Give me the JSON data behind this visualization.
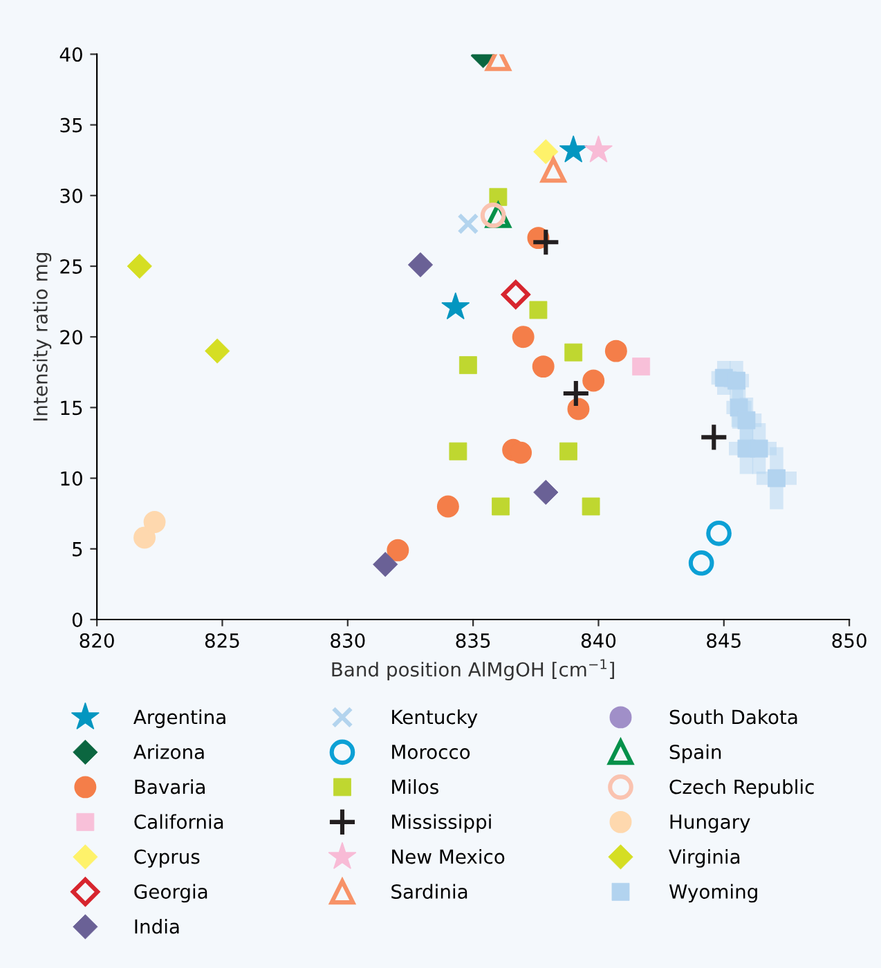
{
  "chart_data": {
    "type": "scatter",
    "xlabel": "Band position AlMgOH [cm$^{−1}$]",
    "ylabel": "Intensity ratio mg",
    "xlim": [
      820,
      850
    ],
    "xticks": [
      820,
      825,
      830,
      835,
      840,
      845,
      850
    ],
    "ylim": [
      0,
      40
    ],
    "yticks": [
      0,
      5,
      10,
      15,
      20,
      25,
      30,
      35,
      40
    ],
    "grid": false,
    "legend": "bottom",
    "series": [
      {
        "name": "Argentina",
        "color": "#0396c0",
        "marker": "star",
        "x": [
          834.3,
          839.0
        ],
        "values": [
          22.1,
          33.2
        ]
      },
      {
        "name": "Arizona",
        "color": "#0b6640",
        "marker": "diamond",
        "x": [
          835.4
        ],
        "values": [
          39.9
        ]
      },
      {
        "name": "Bavaria",
        "color": "#f47e49",
        "marker": "circle",
        "x": [
          837.6,
          837.0,
          837.8,
          839.8,
          840.7,
          839.2,
          836.6,
          836.9,
          834.0,
          832.0
        ],
        "values": [
          27.0,
          20.0,
          17.9,
          16.9,
          19.0,
          14.9,
          12.0,
          11.8,
          8.0,
          4.9
        ]
      },
      {
        "name": "California",
        "color": "#f8c0d9",
        "marker": "square",
        "x": [
          841.7
        ],
        "values": [
          17.9
        ]
      },
      {
        "name": "Cyprus",
        "color": "#fef26a",
        "marker": "diamond",
        "x": [
          837.9
        ],
        "values": [
          33.1
        ]
      },
      {
        "name": "Georgia",
        "color": "#d7252e",
        "marker": "diamond open",
        "x": [
          836.7
        ],
        "values": [
          23.0
        ]
      },
      {
        "name": "India",
        "color": "#6a6196",
        "marker": "diamond",
        "x": [
          832.9,
          831.5,
          837.9
        ],
        "values": [
          25.1,
          3.9,
          9.0
        ]
      },
      {
        "name": "Kentucky",
        "color": "#b3d4ee",
        "marker": "cross",
        "x": [
          834.8
        ],
        "values": [
          28.0
        ]
      },
      {
        "name": "Morocco",
        "color": "#0ca0d5",
        "marker": "circle open",
        "x": [
          844.8,
          844.1
        ],
        "values": [
          6.1,
          4.0
        ]
      },
      {
        "name": "Milos",
        "color": "#bfd730",
        "marker": "square",
        "x": [
          836.0,
          837.6,
          834.8,
          839.0,
          834.4,
          838.8,
          836.1,
          839.7
        ],
        "values": [
          29.9,
          21.9,
          18.0,
          18.9,
          11.9,
          11.9,
          8.0,
          8.0
        ]
      },
      {
        "name": "Mississippi",
        "color": "#231f20",
        "marker": "plus",
        "x": [
          837.9,
          839.1,
          844.6
        ],
        "values": [
          26.7,
          16.0,
          12.9
        ]
      },
      {
        "name": "New Mexico",
        "color": "#f8bbd6",
        "marker": "star",
        "x": [
          840.0
        ],
        "values": [
          33.2
        ]
      },
      {
        "name": "Sardinia",
        "color": "#f79267",
        "marker": "triangle open",
        "x": [
          836.0,
          838.2
        ],
        "values": [
          39.7,
          31.8
        ]
      },
      {
        "name": "South Dakota",
        "color": "#a08fc8",
        "marker": "circle"
      },
      {
        "name": "Spain",
        "color": "#05914a",
        "marker": "triangle open",
        "x": [
          836.0
        ],
        "values": [
          28.6
        ]
      },
      {
        "name": "Czech Republic",
        "color": "#fac3b0",
        "marker": "circle open",
        "x": [
          835.8
        ],
        "values": [
          28.6
        ]
      },
      {
        "name": "Hungary",
        "color": "#fed8ae",
        "marker": "circle",
        "x": [
          821.9,
          822.3
        ],
        "values": [
          5.8,
          6.9
        ]
      },
      {
        "name": "Virginia",
        "color": "#d5de23",
        "marker": "diamond",
        "x": [
          821.7,
          824.8
        ],
        "values": [
          25.0,
          19.0
        ]
      },
      {
        "name": "Wyoming",
        "color": "#b2d3ef",
        "marker": "square",
        "x": [
          845.0,
          845.5,
          845.6,
          845.9,
          845.9,
          846.4,
          847.1
        ],
        "values": [
          17.1,
          16.9,
          15.0,
          14.1,
          12.1,
          12.1,
          10.0
        ],
        "xerrors": [
          0.5,
          0.5,
          0.5,
          0.6,
          0.7,
          0.7,
          0.8
        ],
        "errors": [
          1.2,
          1.4,
          1.5,
          1.6,
          1.8,
          1.8,
          2.2
        ]
      }
    ]
  }
}
